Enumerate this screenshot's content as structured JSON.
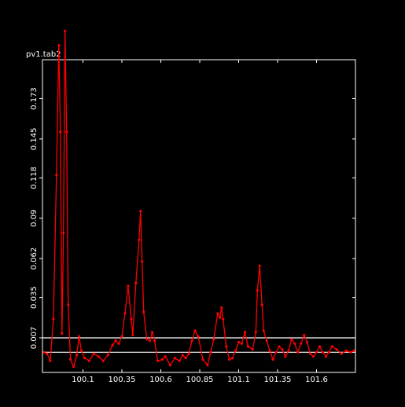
{
  "chart_data": {
    "type": "line",
    "title": "pv1.tab2",
    "xlabel": "",
    "ylabel": "",
    "xlim": [
      99.84,
      101.85
    ],
    "ylim": [
      -0.017,
      0.2
    ],
    "x_ticks": [
      100.1,
      100.35,
      100.6,
      100.85,
      101.1,
      101.35,
      101.6
    ],
    "x_tick_labels": [
      "100.1",
      "100.35",
      "100.6",
      "100.85",
      "101.1",
      "101.35",
      "101.6"
    ],
    "y_ticks": [
      0.007,
      0.035,
      0.062,
      0.09,
      0.118,
      0.145,
      0.173
    ],
    "y_tick_labels": [
      "0.007",
      "0.035",
      "0.062",
      "0.09",
      "0.118",
      "0.145",
      "0.173"
    ],
    "grid": false,
    "reference_lines_y": [
      -0.003,
      0.007
    ],
    "colors": {
      "background": "#000000",
      "axes": "#ffffff",
      "series": "#ff0000",
      "reference": "#ffffff"
    },
    "series": [
      {
        "name": "",
        "points": [
          [
            99.85,
            -0.003
          ],
          [
            99.87,
            -0.004
          ],
          [
            99.89,
            -0.009
          ],
          [
            99.91,
            0.02
          ],
          [
            99.93,
            0.12
          ],
          [
            99.945,
            0.21
          ],
          [
            99.955,
            0.15
          ],
          [
            99.965,
            0.01
          ],
          [
            99.975,
            0.08
          ],
          [
            99.985,
            0.22
          ],
          [
            99.995,
            0.15
          ],
          [
            100.005,
            0.03
          ],
          [
            100.02,
            -0.008
          ],
          [
            100.04,
            -0.013
          ],
          [
            100.06,
            -0.005
          ],
          [
            100.075,
            0.008
          ],
          [
            100.09,
            -0.002
          ],
          [
            100.11,
            -0.007
          ],
          [
            100.14,
            -0.009
          ],
          [
            100.17,
            -0.004
          ],
          [
            100.2,
            -0.006
          ],
          [
            100.23,
            -0.009
          ],
          [
            100.26,
            -0.005
          ],
          [
            100.29,
            0.002
          ],
          [
            100.31,
            0.005
          ],
          [
            100.33,
            0.003
          ],
          [
            100.35,
            0.008
          ],
          [
            100.37,
            0.024
          ],
          [
            100.39,
            0.043
          ],
          [
            100.41,
            0.02
          ],
          [
            100.42,
            0.009
          ],
          [
            100.44,
            0.045
          ],
          [
            100.46,
            0.075
          ],
          [
            100.47,
            0.095
          ],
          [
            100.48,
            0.06
          ],
          [
            100.49,
            0.025
          ],
          [
            100.51,
            0.006
          ],
          [
            100.53,
            0.005
          ],
          [
            100.545,
            0.011
          ],
          [
            100.56,
            0.005
          ],
          [
            100.58,
            -0.009
          ],
          [
            100.61,
            -0.008
          ],
          [
            100.63,
            -0.006
          ],
          [
            100.66,
            -0.012
          ],
          [
            100.69,
            -0.007
          ],
          [
            100.72,
            -0.009
          ],
          [
            100.74,
            -0.005
          ],
          [
            100.76,
            -0.007
          ],
          [
            100.78,
            -0.004
          ],
          [
            100.8,
            0.005
          ],
          [
            100.82,
            0.012
          ],
          [
            100.84,
            0.008
          ],
          [
            100.87,
            -0.008
          ],
          [
            100.9,
            -0.012
          ],
          [
            100.92,
            -0.003
          ],
          [
            100.94,
            0.006
          ],
          [
            100.965,
            0.024
          ],
          [
            100.98,
            0.021
          ],
          [
            100.99,
            0.028
          ],
          [
            101.0,
            0.02
          ],
          [
            101.02,
            0.001
          ],
          [
            101.04,
            -0.008
          ],
          [
            101.06,
            -0.007
          ],
          [
            101.08,
            -0.002
          ],
          [
            101.1,
            0.004
          ],
          [
            101.12,
            0.003
          ],
          [
            101.14,
            0.011
          ],
          [
            101.16,
            0.001
          ],
          [
            101.19,
            -0.001
          ],
          [
            101.21,
            0.011
          ],
          [
            101.22,
            0.04
          ],
          [
            101.235,
            0.057
          ],
          [
            101.25,
            0.03
          ],
          [
            101.26,
            0.012
          ],
          [
            101.28,
            0.005
          ],
          [
            101.3,
            -0.002
          ],
          [
            101.32,
            -0.008
          ],
          [
            101.34,
            -0.003
          ],
          [
            101.36,
            0.001
          ],
          [
            101.38,
            -0.001
          ],
          [
            101.4,
            -0.006
          ],
          [
            101.42,
            -0.002
          ],
          [
            101.44,
            0.006
          ],
          [
            101.46,
            0.003
          ],
          [
            101.48,
            -0.003
          ],
          [
            101.5,
            0.003
          ],
          [
            101.52,
            0.009
          ],
          [
            101.54,
            0.004
          ],
          [
            101.56,
            -0.004
          ],
          [
            101.58,
            -0.006
          ],
          [
            101.6,
            -0.003
          ],
          [
            101.62,
            0.001
          ],
          [
            101.64,
            -0.003
          ],
          [
            101.66,
            -0.006
          ],
          [
            101.68,
            -0.003
          ],
          [
            101.7,
            0.001
          ],
          [
            101.73,
            -0.001
          ],
          [
            101.76,
            -0.004
          ],
          [
            101.79,
            -0.002
          ],
          [
            101.82,
            -0.003
          ],
          [
            101.84,
            -0.002
          ]
        ]
      }
    ]
  }
}
